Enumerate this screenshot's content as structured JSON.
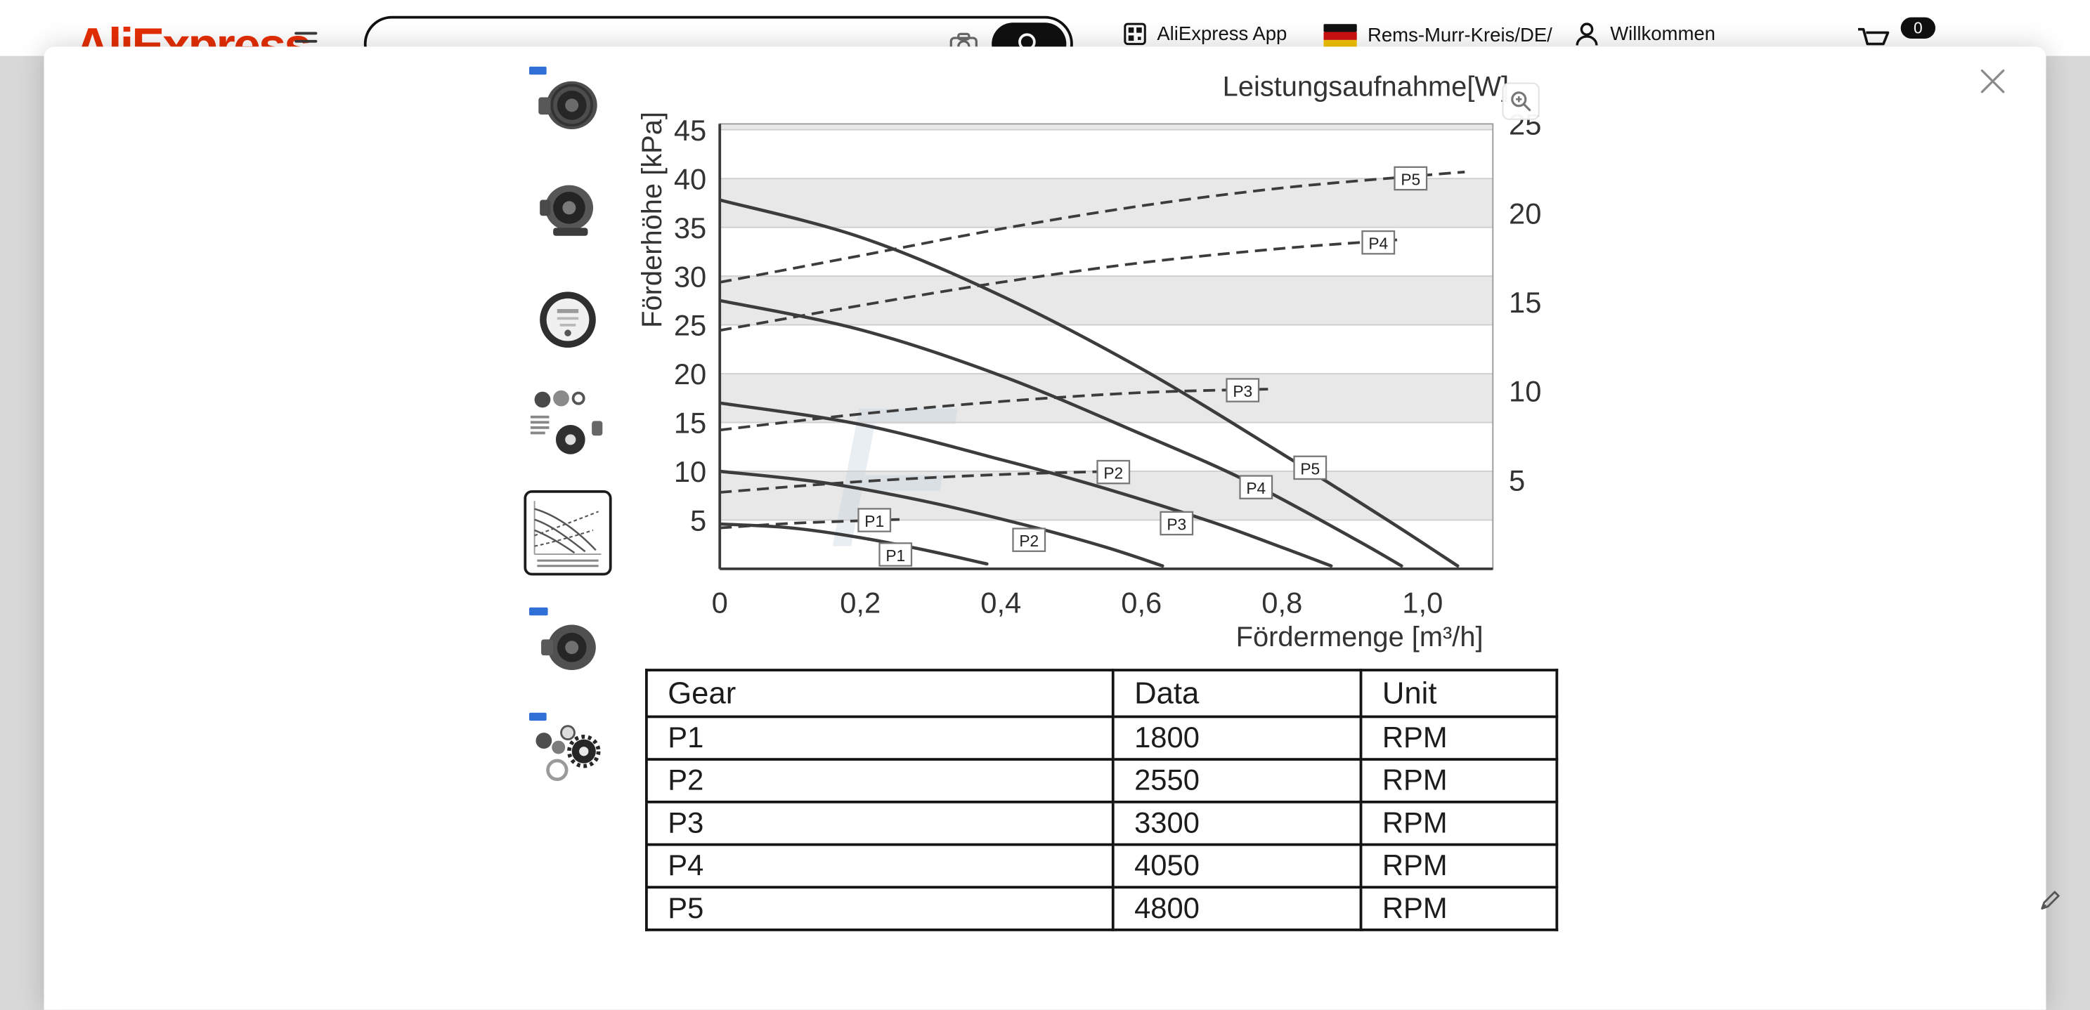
{
  "header": {
    "logo": "AliExpress",
    "search": {
      "value": "",
      "placeholder": ""
    },
    "app_label": "AliExpress App",
    "region_label": "Rems-Murr-Kreis/DE/",
    "account_label": "Willkommen",
    "cart_count": "0"
  },
  "modal": {
    "thumbnails": [
      {
        "name": "pump-angled-view"
      },
      {
        "name": "pump-side-view"
      },
      {
        "name": "pump-gauge-face"
      },
      {
        "name": "pump-parts-set"
      },
      {
        "name": "performance-chart",
        "selected": true
      },
      {
        "name": "pump-with-logo"
      },
      {
        "name": "pump-exploded-parts"
      }
    ]
  },
  "chart_data": {
    "type": "line",
    "title": "Leistungsaufnahme[W]",
    "xlabel": "Fördermenge [m³/h]",
    "ylabel_left": "Förderhöhe [kPa]",
    "xlim": [
      0,
      1.1
    ],
    "ylim_left": [
      0,
      45.6
    ],
    "ylim_right": [
      0,
      25
    ],
    "x_ticks": [
      0,
      0.2,
      0.4,
      0.6,
      0.8,
      1.0
    ],
    "x_tick_labels": [
      "0",
      "0,2",
      "0,4",
      "0,6",
      "0,8",
      "1,0"
    ],
    "y_ticks_left": [
      5,
      10,
      15,
      20,
      25,
      30,
      35,
      40,
      45
    ],
    "y_ticks_right": [
      5,
      10,
      15,
      20,
      25
    ],
    "gray_bands_left_axis": [
      [
        5,
        10
      ],
      [
        15,
        20
      ],
      [
        25,
        30
      ],
      [
        35,
        40
      ],
      [
        45,
        45.6
      ]
    ],
    "head_curves_solid": [
      {
        "name": "P1",
        "points": [
          [
            0,
            4.6
          ],
          [
            0.1,
            4.2
          ],
          [
            0.2,
            3.2
          ],
          [
            0.3,
            1.8
          ],
          [
            0.38,
            0.5
          ]
        ],
        "label_at": [
          0.25,
          1.4
        ]
      },
      {
        "name": "P2",
        "points": [
          [
            0,
            10
          ],
          [
            0.15,
            8.8
          ],
          [
            0.3,
            6.8
          ],
          [
            0.45,
            4.2
          ],
          [
            0.55,
            2.2
          ],
          [
            0.63,
            0.3
          ]
        ],
        "label_at": [
          0.44,
          2.9
        ]
      },
      {
        "name": "P3",
        "points": [
          [
            0,
            17
          ],
          [
            0.2,
            14.8
          ],
          [
            0.4,
            11.2
          ],
          [
            0.55,
            8.2
          ],
          [
            0.7,
            4.8
          ],
          [
            0.8,
            2.2
          ],
          [
            0.87,
            0.3
          ]
        ],
        "label_at": [
          0.65,
          4.6
        ]
      },
      {
        "name": "P4",
        "points": [
          [
            0,
            27.5
          ],
          [
            0.2,
            24.5
          ],
          [
            0.4,
            19.8
          ],
          [
            0.6,
            13.8
          ],
          [
            0.75,
            9.0
          ],
          [
            0.9,
            3.2
          ],
          [
            0.97,
            0.3
          ]
        ],
        "label_at": [
          0.763,
          8.3
        ]
      },
      {
        "name": "P5",
        "points": [
          [
            0,
            37.8
          ],
          [
            0.2,
            34.0
          ],
          [
            0.4,
            28.0
          ],
          [
            0.6,
            20.5
          ],
          [
            0.8,
            11.8
          ],
          [
            0.95,
            5.0
          ],
          [
            1.05,
            0.3
          ]
        ],
        "label_at": [
          0.84,
          10.3
        ]
      }
    ],
    "power_curves_dashed": [
      {
        "name": "P1",
        "points": [
          [
            0,
            2.3
          ],
          [
            0.1,
            2.55
          ],
          [
            0.2,
            2.7
          ],
          [
            0.26,
            2.78
          ]
        ],
        "label_at": [
          0.22,
          2.7
        ]
      },
      {
        "name": "P2",
        "points": [
          [
            0,
            4.3
          ],
          [
            0.2,
            4.9
          ],
          [
            0.4,
            5.3
          ],
          [
            0.58,
            5.5
          ]
        ],
        "label_at": [
          0.56,
          5.4
        ]
      },
      {
        "name": "P3",
        "points": [
          [
            0,
            7.8
          ],
          [
            0.2,
            8.7
          ],
          [
            0.4,
            9.4
          ],
          [
            0.6,
            9.9
          ],
          [
            0.78,
            10.1
          ]
        ],
        "label_at": [
          0.744,
          10.0
        ]
      },
      {
        "name": "P4",
        "points": [
          [
            0,
            13.4
          ],
          [
            0.2,
            14.8
          ],
          [
            0.4,
            16.1
          ],
          [
            0.6,
            17.2
          ],
          [
            0.8,
            18.0
          ],
          [
            0.97,
            18.5
          ]
        ],
        "label_at": [
          0.937,
          18.3
        ]
      },
      {
        "name": "P5",
        "points": [
          [
            0,
            16.1
          ],
          [
            0.2,
            17.6
          ],
          [
            0.4,
            19.1
          ],
          [
            0.6,
            20.4
          ],
          [
            0.8,
            21.4
          ],
          [
            1.0,
            22.1
          ],
          [
            1.06,
            22.3
          ]
        ],
        "label_at": [
          0.983,
          21.9
        ]
      }
    ]
  },
  "table": {
    "headers": [
      "Gear",
      "Data",
      "Unit"
    ],
    "rows": [
      [
        "P1",
        "1800",
        "RPM"
      ],
      [
        "P2",
        "2550",
        "RPM"
      ],
      [
        "P3",
        "3300",
        "RPM"
      ],
      [
        "P4",
        "4050",
        "RPM"
      ],
      [
        "P5",
        "4800",
        "RPM"
      ]
    ]
  }
}
